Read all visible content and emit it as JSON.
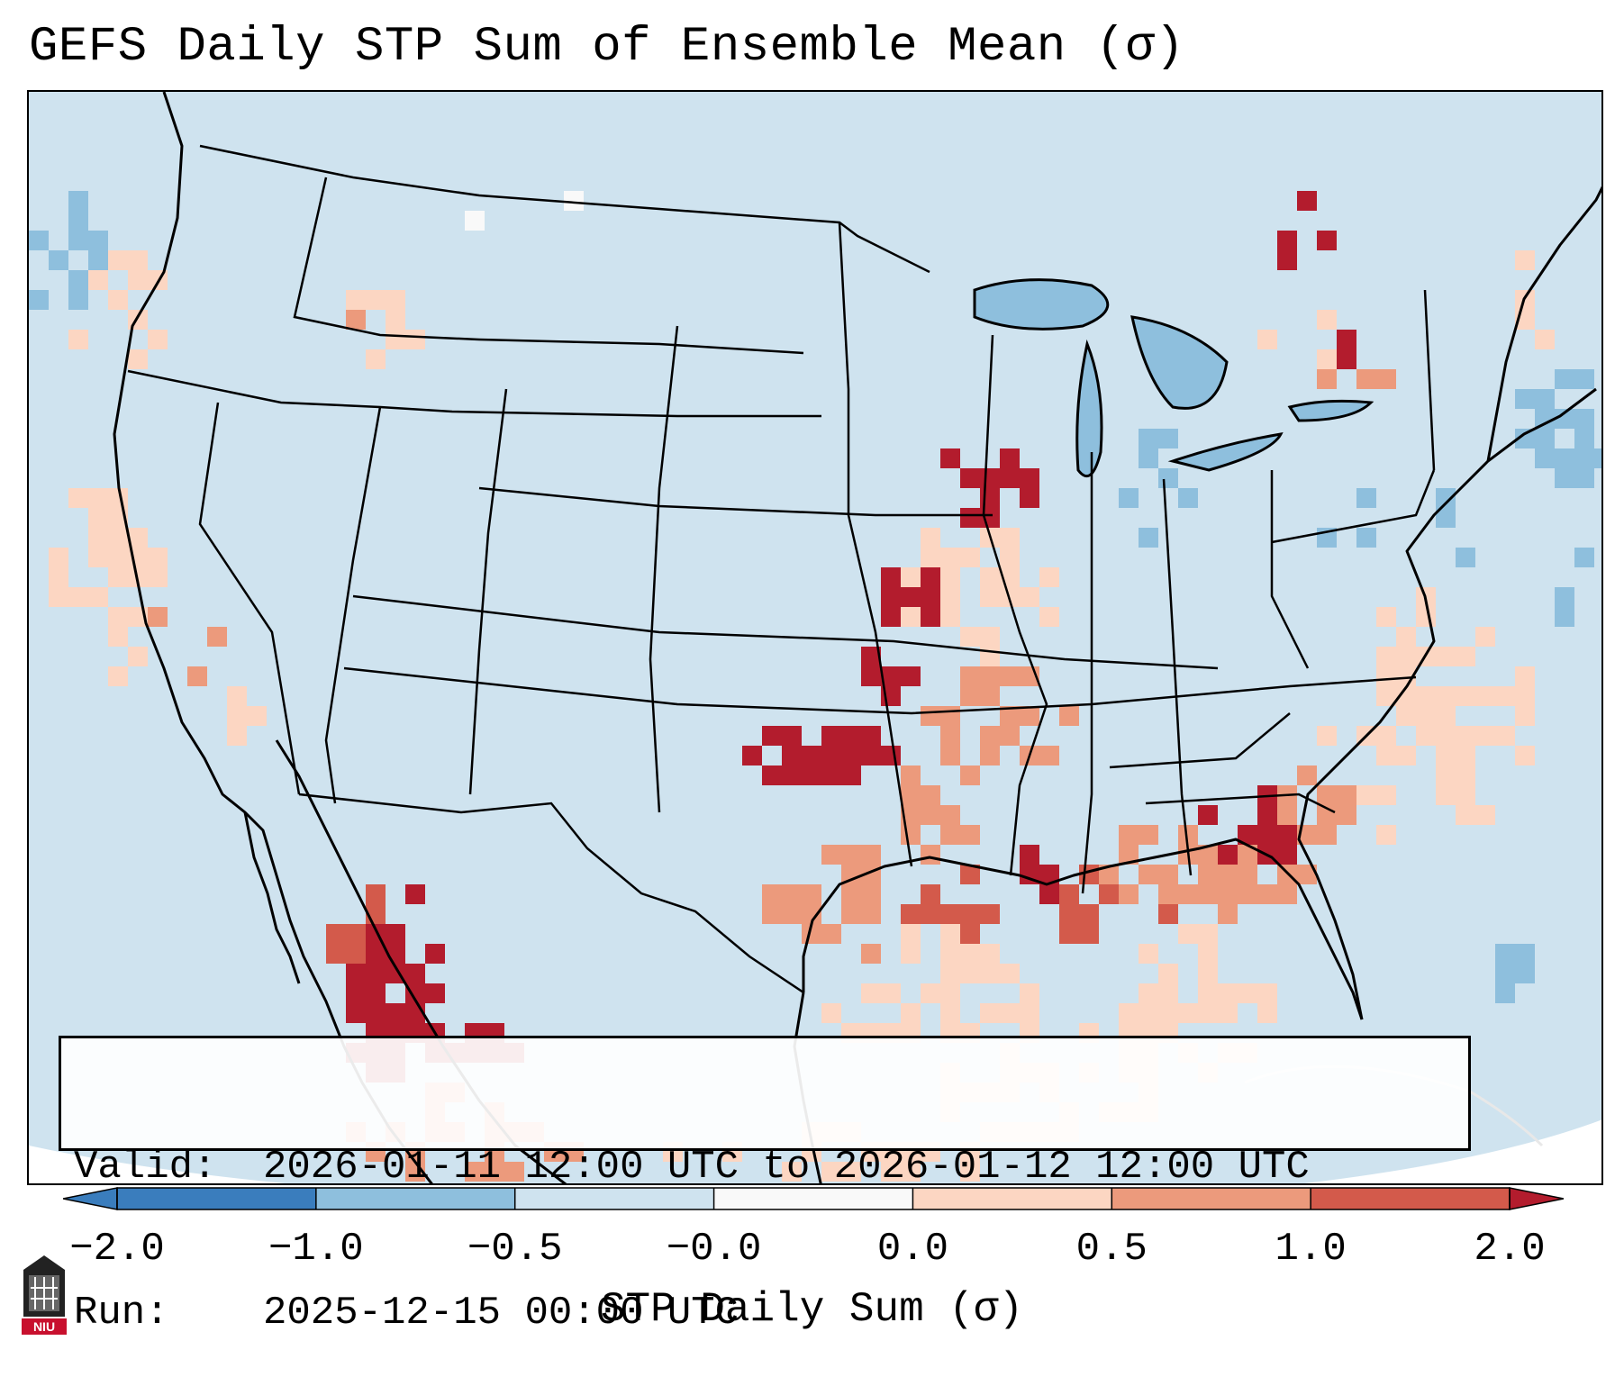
{
  "title": "GEFS Daily STP Sum of Ensemble Mean (σ)",
  "info": {
    "valid_label": "Valid:",
    "valid_value": "2026-01-11 12:00 UTC to 2026-01-12 12:00 UTC",
    "run_label": "Run:",
    "run_value": "2025-12-15 00:00 UTC"
  },
  "colorbar": {
    "label": "STP Daily Sum (σ)",
    "ticks": [
      "−2.0",
      "−1.0",
      "−0.5",
      "−0.0",
      "0.0",
      "0.5",
      "1.0",
      "2.0"
    ],
    "colors": [
      "#3a7dbd",
      "#8ebfdd",
      "#cfe3ef",
      "#f9f9f9",
      "#fcd6c2",
      "#ec9a7c",
      "#d35a4b",
      "#b31c2d"
    ]
  },
  "map": {
    "background_color": "#cfe3ef",
    "region": "Contiguous United States",
    "icons": [
      "niu-logo-icon"
    ]
  },
  "logo": {
    "text": "NIU"
  }
}
